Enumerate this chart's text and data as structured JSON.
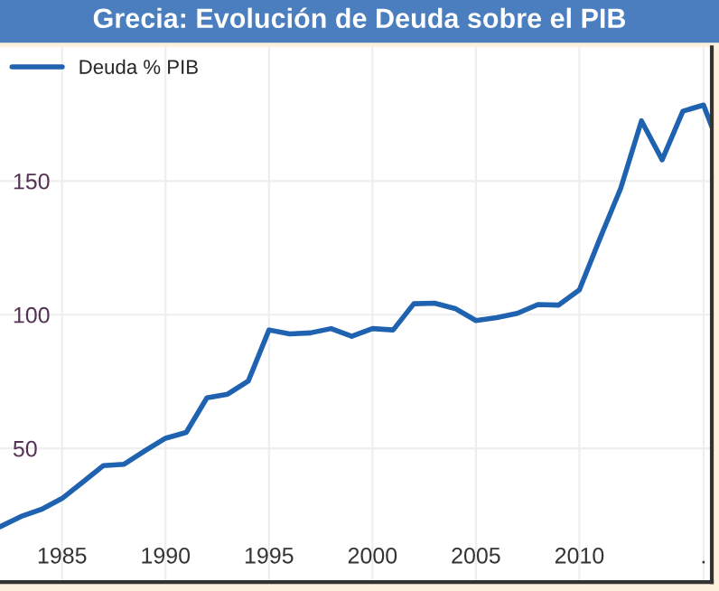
{
  "chart_data": {
    "type": "line",
    "title": "Grecia: Evolución de Deuda sobre el PIB",
    "x": [
      1982,
      1983,
      1984,
      1985,
      1986,
      1987,
      1988,
      1989,
      1990,
      1991,
      1992,
      1993,
      1994,
      1995,
      1996,
      1997,
      1998,
      1999,
      2000,
      2001,
      2002,
      2003,
      2004,
      2005,
      2006,
      2007,
      2008,
      2009,
      2010,
      2011,
      2012,
      2013,
      2014,
      2015,
      2016,
      2016.4
    ],
    "series": [
      {
        "name": "Deuda % PIB",
        "color": "#1f62b0",
        "values": [
          20.7,
          24.5,
          27.2,
          31.3,
          37.4,
          43.6,
          44.1,
          49.1,
          53.8,
          56.0,
          68.9,
          70.3,
          75.2,
          94.3,
          92.8,
          93.2,
          94.8,
          91.9,
          94.8,
          94.3,
          104.1,
          104.3,
          102.3,
          97.8,
          98.9,
          100.5,
          103.8,
          103.6,
          109.3,
          128.6,
          147.3,
          172.5,
          157.9,
          176.1,
          178.4,
          170.3
        ]
      }
    ],
    "xlim": [
      1982,
      2016.4
    ],
    "ylim": [
      0,
      200
    ],
    "xticks": [
      1985,
      1990,
      1995,
      2000,
      2005,
      2010,
      {
        "value": 2016,
        "label": "."
      }
    ],
    "yticks": [
      50,
      100,
      150
    ],
    "grid": true,
    "legend": "top left",
    "marker": "none",
    "line_style": "solid"
  }
}
